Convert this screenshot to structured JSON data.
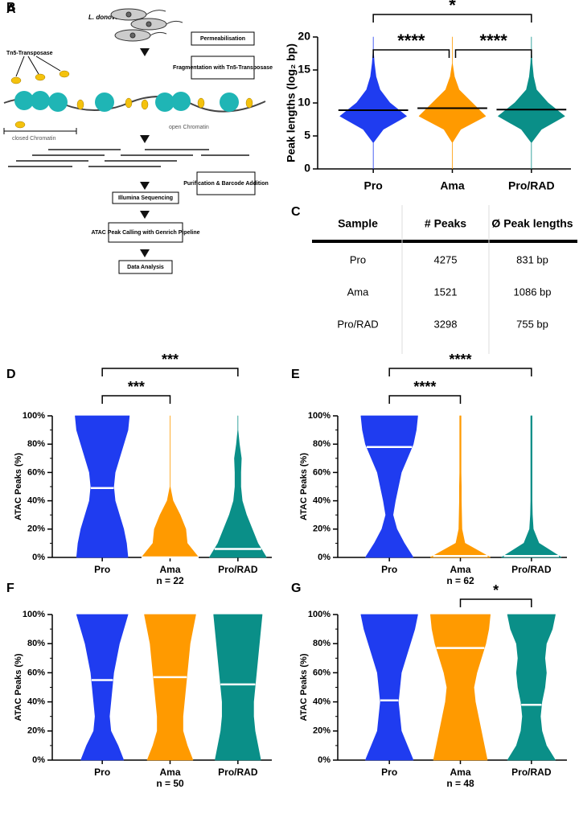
{
  "panel_a": {
    "label": "A",
    "organism": "L. donovani",
    "transposase": "Tn5-Transposase",
    "closed": "closed Chromatin",
    "open": "open Chromatin",
    "steps": [
      "Permeabilisation",
      "Fragmentation with Tn5-Transposase",
      "Purification & Barcode Addition",
      "Illumina Sequencing",
      "ATAC Peak Calling with Genrich Pipeline",
      "Data Analysis"
    ]
  },
  "table": {
    "label": "C",
    "columns": [
      "Sample",
      "# Peaks",
      "Ø Peak lengths"
    ],
    "rows": [
      [
        "Pro",
        4275,
        "831 bp"
      ],
      [
        "Ama",
        1521,
        "1086 bp"
      ],
      [
        "Pro/RAD",
        3298,
        "755 bp"
      ]
    ]
  },
  "chart_data": [
    {
      "type": "violin",
      "label": "B",
      "ylabel": "Peak lengths (log₂ bp)",
      "categories": [
        "Pro",
        "Ama",
        "Pro/RAD"
      ],
      "colors": [
        "#1f3cf0",
        "#ff9a00",
        "#0a8f88"
      ],
      "median_color": "#000000",
      "ylim": [
        0,
        20
      ],
      "yticks": [
        0,
        5,
        10,
        15,
        20
      ],
      "density": [
        [
          0,
          0,
          0,
          0.3,
          1,
          0.5,
          0.2,
          0.08,
          0.03,
          0,
          0
        ],
        [
          0,
          0,
          0,
          0.25,
          1,
          0.6,
          0.2,
          0.06,
          0,
          0,
          0
        ],
        [
          0,
          0,
          0,
          0.3,
          1,
          0.5,
          0.15,
          0.06,
          0.02,
          0,
          0
        ]
      ],
      "medians": [
        8.9,
        9.2,
        9.0
      ],
      "significance": [
        {
          "groups": [
            0,
            1
          ],
          "label": "****"
        },
        {
          "groups": [
            1,
            2
          ],
          "label": "****"
        },
        {
          "groups": [
            0,
            2
          ],
          "label": "*"
        }
      ]
    },
    {
      "type": "violin",
      "label": "D",
      "ylabel": "ATAC Peaks (%)",
      "n_label": "n = 22",
      "categories": [
        "Pro",
        "Ama",
        "Pro/RAD"
      ],
      "colors": [
        "#1f3cf0",
        "#ff9a00",
        "#0a8f88"
      ],
      "median_color": "#ffffff",
      "ylim": [
        0,
        100
      ],
      "yticks": [
        {
          "value": 0,
          "label": "0%"
        },
        {
          "value": 20,
          "label": "20%"
        },
        {
          "value": 40,
          "label": "40%"
        },
        {
          "value": 60,
          "label": "60%"
        },
        {
          "value": 80,
          "label": "80%"
        },
        {
          "value": 100,
          "label": "100%"
        }
      ],
      "minor_yticks": [
        10,
        30,
        50,
        70,
        90
      ],
      "density": [
        [
          0.9,
          0.85,
          0.75,
          0.6,
          0.45,
          0.4,
          0.45,
          0.6,
          0.75,
          0.9,
          0.95
        ],
        [
          1,
          0.6,
          0.55,
          0.35,
          0.1,
          0,
          0,
          0,
          0,
          0,
          0
        ],
        [
          1,
          0.7,
          0.5,
          0.3,
          0.15,
          0.1,
          0.1,
          0.12,
          0.05,
          0,
          0
        ]
      ],
      "medians": [
        49,
        0,
        6
      ],
      "significance": [
        {
          "groups": [
            0,
            1
          ],
          "label": "***"
        },
        {
          "groups": [
            0,
            2
          ],
          "label": "***"
        }
      ]
    },
    {
      "type": "violin",
      "label": "E",
      "ylabel": "ATAC Peaks (%)",
      "n_label": "n = 62",
      "categories": [
        "Pro",
        "Ama",
        "Pro/RAD"
      ],
      "colors": [
        "#1f3cf0",
        "#ff9a00",
        "#0a8f88"
      ],
      "median_color": "#ffffff",
      "ylim": [
        0,
        100
      ],
      "yticks": [
        {
          "value": 0,
          "label": "0%"
        },
        {
          "value": 20,
          "label": "20%"
        },
        {
          "value": 40,
          "label": "40%"
        },
        {
          "value": 60,
          "label": "60%"
        },
        {
          "value": 80,
          "label": "80%"
        },
        {
          "value": 100,
          "label": "100%"
        }
      ],
      "minor_yticks": [
        10,
        30,
        50,
        70,
        90
      ],
      "density": [
        [
          0.8,
          0.5,
          0.25,
          0.12,
          0.2,
          0.3,
          0.4,
          0.6,
          0.8,
          0.9,
          0.95
        ],
        [
          1,
          0.15,
          0.05,
          0.04,
          0.03,
          0.03,
          0.02,
          0.02,
          0.02,
          0.02,
          0.02
        ],
        [
          1,
          0.25,
          0.06,
          0.03,
          0.02,
          0.02,
          0.02,
          0.02,
          0.02,
          0.02,
          0.02
        ]
      ],
      "medians": [
        78,
        1,
        1
      ],
      "significance": [
        {
          "groups": [
            0,
            1
          ],
          "label": "****"
        },
        {
          "groups": [
            0,
            2
          ],
          "label": "****"
        }
      ]
    },
    {
      "type": "violin",
      "label": "F",
      "ylabel": "ATAC Peaks (%)",
      "n_label": "n = 50",
      "categories": [
        "Pro",
        "Ama",
        "Pro/RAD"
      ],
      "colors": [
        "#1f3cf0",
        "#ff9a00",
        "#0a8f88"
      ],
      "median_color": "#ffffff",
      "ylim": [
        0,
        100
      ],
      "yticks": [
        {
          "value": 0,
          "label": "0%"
        },
        {
          "value": 20,
          "label": "20%"
        },
        {
          "value": 40,
          "label": "40%"
        },
        {
          "value": 60,
          "label": "60%"
        },
        {
          "value": 80,
          "label": "80%"
        },
        {
          "value": 100,
          "label": "100%"
        }
      ],
      "minor_yticks": [
        10,
        30,
        50,
        70,
        90
      ],
      "density": [
        [
          0.75,
          0.55,
          0.3,
          0.25,
          0.3,
          0.35,
          0.4,
          0.5,
          0.6,
          0.75,
          0.9
        ],
        [
          0.8,
          0.6,
          0.45,
          0.45,
          0.5,
          0.55,
          0.6,
          0.65,
          0.7,
          0.8,
          0.9
        ],
        [
          0.8,
          0.7,
          0.6,
          0.55,
          0.55,
          0.6,
          0.65,
          0.7,
          0.75,
          0.8,
          0.85
        ]
      ],
      "medians": [
        55,
        57,
        52
      ],
      "significance": []
    },
    {
      "type": "violin",
      "label": "G",
      "ylabel": "ATAC Peaks (%)",
      "n_label": "n = 48",
      "categories": [
        "Pro",
        "Ama",
        "Pro/RAD"
      ],
      "colors": [
        "#1f3cf0",
        "#ff9a00",
        "#0a8f88"
      ],
      "median_color": "#ffffff",
      "ylim": [
        0,
        100
      ],
      "yticks": [
        {
          "value": 0,
          "label": "0%"
        },
        {
          "value": 20,
          "label": "20%"
        },
        {
          "value": 40,
          "label": "40%"
        },
        {
          "value": 60,
          "label": "60%"
        },
        {
          "value": 80,
          "label": "80%"
        },
        {
          "value": 100,
          "label": "100%"
        }
      ],
      "minor_yticks": [
        10,
        30,
        50,
        70,
        90
      ],
      "density": [
        [
          0.8,
          0.6,
          0.4,
          0.35,
          0.3,
          0.35,
          0.4,
          0.55,
          0.7,
          0.85,
          0.95
        ],
        [
          0.9,
          0.8,
          0.7,
          0.6,
          0.5,
          0.45,
          0.55,
          0.7,
          0.85,
          0.95,
          1
        ],
        [
          0.8,
          0.5,
          0.35,
          0.3,
          0.35,
          0.45,
          0.5,
          0.45,
          0.5,
          0.7,
          0.8
        ]
      ],
      "medians": [
        41,
        77,
        38
      ],
      "significance": [
        {
          "groups": [
            1,
            2
          ],
          "label": "*"
        }
      ]
    }
  ]
}
